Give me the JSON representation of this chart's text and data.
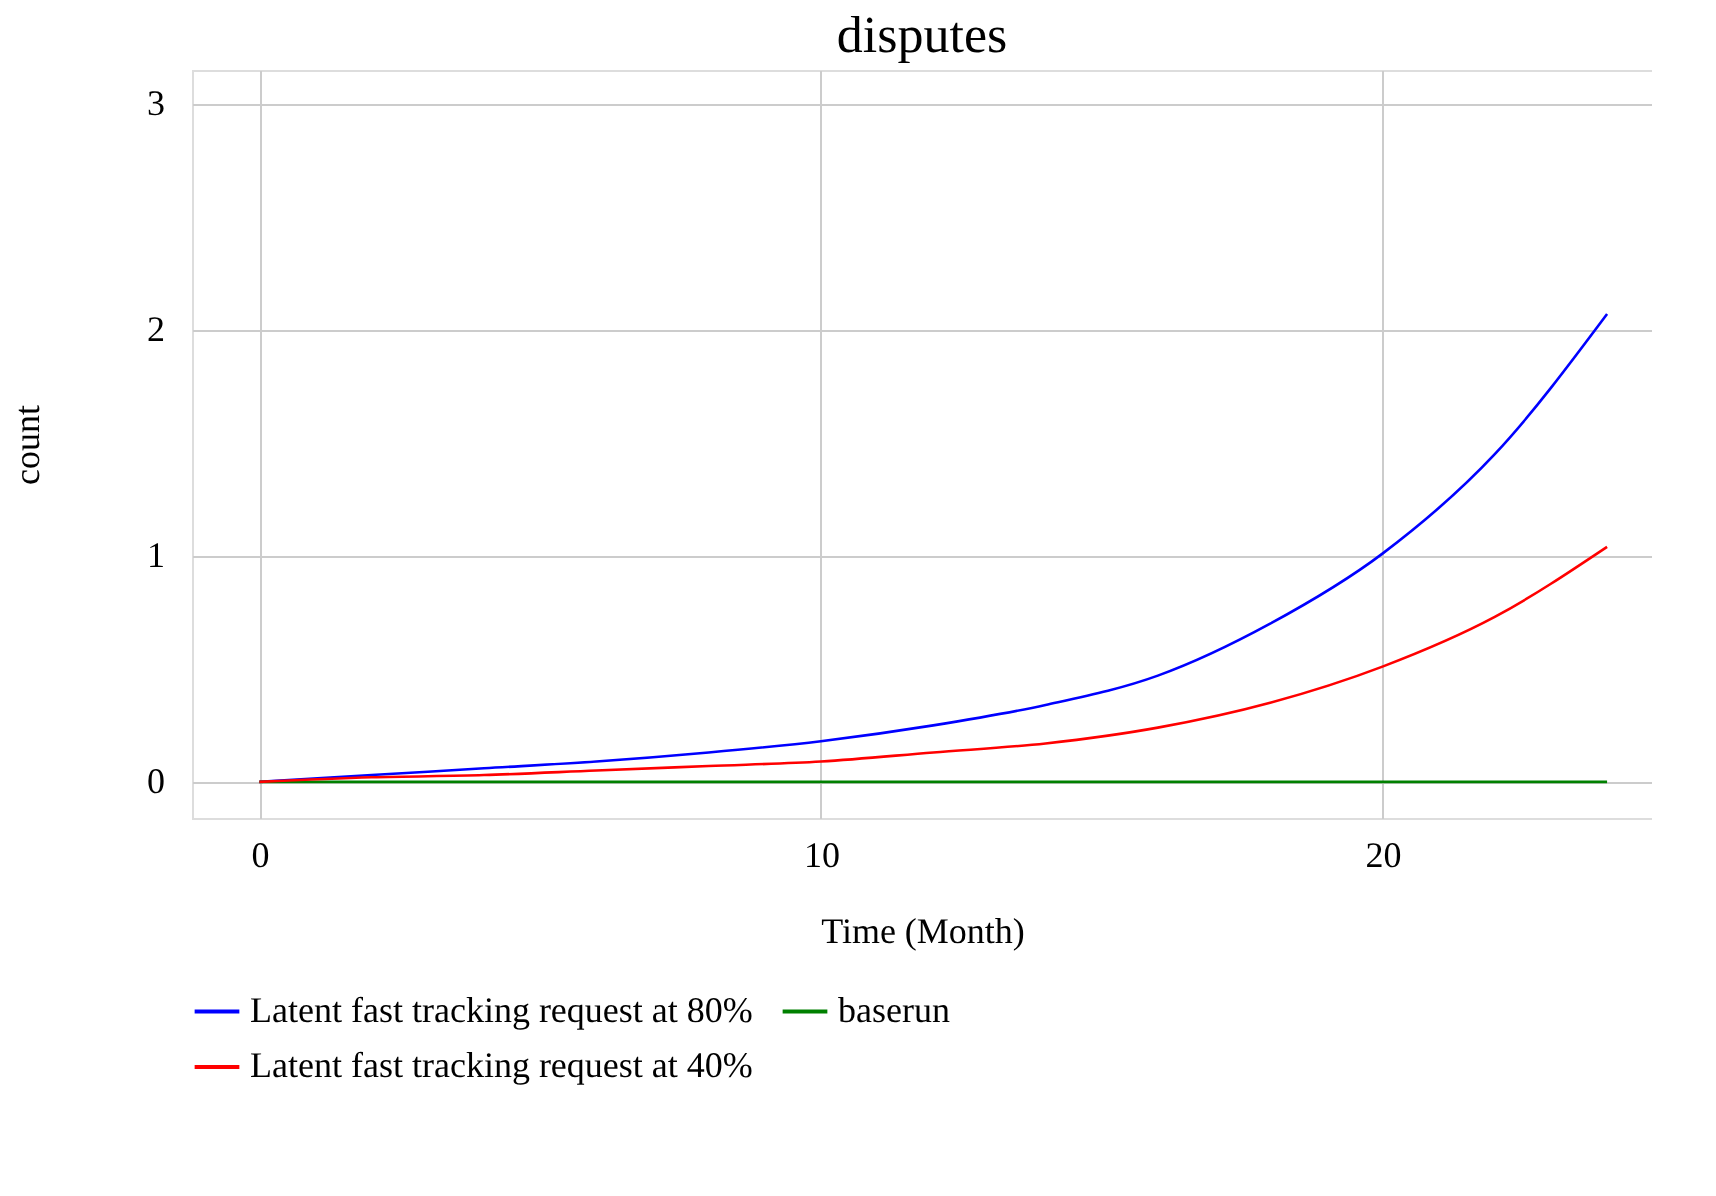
{
  "chart_data": {
    "type": "line",
    "title": "disputes",
    "xlabel": "Time (Month)",
    "ylabel": "count",
    "x": [
      0,
      2,
      4,
      6,
      8,
      10,
      12,
      14,
      16,
      18,
      20,
      22,
      24
    ],
    "series": [
      {
        "name": "Latent fast tracking request at 80%",
        "color": "#0000ff",
        "values": [
          0,
          0.03,
          0.06,
          0.09,
          0.13,
          0.18,
          0.25,
          0.34,
          0.47,
          0.7,
          1.01,
          1.45,
          2.07
        ]
      },
      {
        "name": "baserun",
        "color": "#008000",
        "values": [
          0,
          0,
          0,
          0,
          0,
          0,
          0,
          0,
          0,
          0,
          0,
          0,
          0
        ]
      },
      {
        "name": "Latent fast tracking request at 40%",
        "color": "#ff0000",
        "values": [
          0,
          0.02,
          0.03,
          0.05,
          0.07,
          0.09,
          0.13,
          0.17,
          0.24,
          0.35,
          0.51,
          0.73,
          1.04
        ]
      }
    ],
    "xlim": [
      -1.2,
      24.8
    ],
    "ylim": [
      -0.16,
      3.15
    ],
    "xticks": [
      0,
      10,
      20
    ],
    "yticks": [
      0,
      1,
      2,
      3
    ],
    "grid": true,
    "legend": "bottom",
    "line_style": "solid",
    "marker": "none"
  }
}
